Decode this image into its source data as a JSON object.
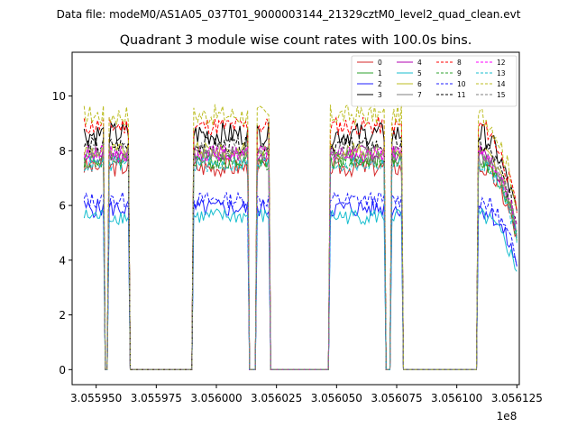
{
  "figure": {
    "suptitle": "Data file: modeM0/AS1A05_037T01_9000003144_21329cztM0_level2_quad_clean.evt",
    "title": "Quadrant 3 module wise count rates with 100.0s bins.",
    "x_offset_label": "1e8"
  },
  "chart_data": {
    "type": "line",
    "title": "Quadrant 3 module wise count rates with 100.0s bins.",
    "xlabel": "",
    "ylabel": "",
    "x_scale_factor": 100000000,
    "xlim": [
      3.05594,
      3.056126
    ],
    "ylim": [
      -0.55,
      11.6
    ],
    "x_ticks": [
      3.05595,
      3.055975,
      3.056,
      3.056025,
      3.05605,
      3.056075,
      3.0561,
      3.056125
    ],
    "x_tick_labels": [
      "3.055950",
      "3.055975",
      "3.056000",
      "3.056025",
      "3.056050",
      "3.056075",
      "3.056100",
      "3.056125"
    ],
    "y_ticks": [
      0,
      2,
      4,
      6,
      8,
      10
    ],
    "y_tick_labels": [
      "0",
      "2",
      "4",
      "6",
      "8",
      "10"
    ],
    "grid": false,
    "legend_position": "top-right",
    "legend_columns": 4,
    "segments": [
      {
        "x0": 3.055945,
        "x1": 3.055953,
        "gap_after": true
      },
      {
        "x0": 3.055955,
        "x1": 3.055964,
        "gap_after": true
      },
      {
        "x0": 3.05599,
        "x1": 3.056013,
        "gap_after": true
      },
      {
        "x0": 3.056017,
        "x1": 3.056022,
        "gap_after": true
      },
      {
        "x0": 3.056047,
        "x1": 3.05607,
        "gap_after": true
      },
      {
        "x0": 3.056073,
        "x1": 3.056077,
        "gap_after": true
      },
      {
        "x0": 3.056109,
        "x1": 3.056125,
        "gap_after": false
      }
    ],
    "zero_ranges": [
      [
        3.055953,
        3.055955
      ],
      [
        3.055966,
        3.055988
      ],
      [
        3.056015,
        3.056016
      ],
      [
        3.056024,
        3.056045
      ],
      [
        3.056071,
        3.056072
      ],
      [
        3.056079,
        3.056107
      ]
    ],
    "series": [
      {
        "name": "0",
        "color": "#d62728",
        "dash": "solid",
        "level": 7.4,
        "amp": 0.35
      },
      {
        "name": "1",
        "color": "#2ca02c",
        "dash": "solid",
        "level": 7.7,
        "amp": 0.35
      },
      {
        "name": "2",
        "color": "#1f1fff",
        "dash": "solid",
        "level": 5.9,
        "amp": 0.35
      },
      {
        "name": "3",
        "color": "#000000",
        "dash": "solid",
        "level": 8.6,
        "amp": 0.45
      },
      {
        "name": "4",
        "color": "#b000b0",
        "dash": "solid",
        "level": 7.9,
        "amp": 0.3
      },
      {
        "name": "5",
        "color": "#17becf",
        "dash": "solid",
        "level": 5.6,
        "amp": 0.3
      },
      {
        "name": "6",
        "color": "#bcbd22",
        "dash": "solid",
        "level": 8.0,
        "amp": 0.3
      },
      {
        "name": "7",
        "color": "#7f7f7f",
        "dash": "solid",
        "level": 7.8,
        "amp": 0.3
      },
      {
        "name": "8",
        "color": "#ff0000",
        "dash": "dashed",
        "level": 8.9,
        "amp": 0.35
      },
      {
        "name": "9",
        "color": "#2ca02c",
        "dash": "dashed",
        "level": 7.6,
        "amp": 0.3
      },
      {
        "name": "10",
        "color": "#1f1fff",
        "dash": "dashed",
        "level": 6.2,
        "amp": 0.3
      },
      {
        "name": "11",
        "color": "#000000",
        "dash": "dashed",
        "level": 8.2,
        "amp": 0.3
      },
      {
        "name": "12",
        "color": "#ff00ff",
        "dash": "dashed",
        "level": 7.9,
        "amp": 0.3
      },
      {
        "name": "13",
        "color": "#17becf",
        "dash": "dashed",
        "level": 7.5,
        "amp": 0.3
      },
      {
        "name": "14",
        "color": "#bcbd22",
        "dash": "dashed",
        "level": 9.3,
        "amp": 0.4
      },
      {
        "name": "15",
        "color": "#7f7f7f",
        "dash": "dashed",
        "level": 8.0,
        "amp": 0.3
      }
    ]
  }
}
